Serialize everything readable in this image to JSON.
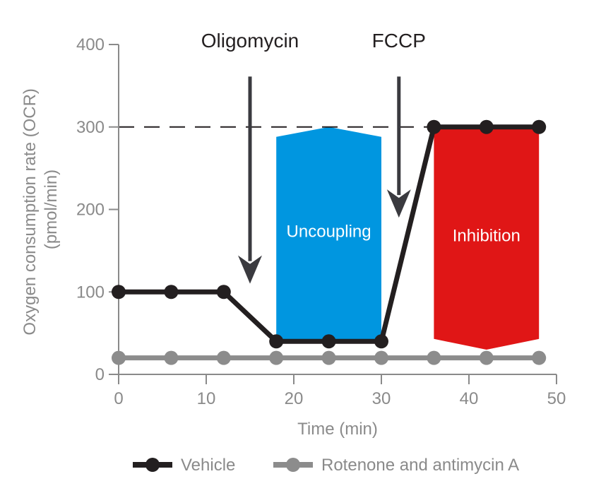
{
  "chart_data": {
    "type": "line",
    "xlabel": "Time (min)",
    "ylabel_lines": [
      "Oxygen consumption rate (OCR)",
      "(pmol/min)"
    ],
    "xlim": [
      0,
      50
    ],
    "ylim": [
      0,
      400
    ],
    "x_ticks": [
      0,
      10,
      20,
      30,
      40,
      50
    ],
    "y_ticks": [
      0,
      100,
      200,
      300,
      400
    ],
    "grid": false,
    "reference_line": {
      "y": 300,
      "style": "dashed",
      "color": "#231f20"
    },
    "series": [
      {
        "name": "Vehicle",
        "color": "#231f20",
        "x": [
          0,
          6,
          12,
          18,
          24,
          30,
          36,
          42,
          48
        ],
        "y": [
          100,
          100,
          100,
          40,
          40,
          40,
          300,
          300,
          300
        ]
      },
      {
        "name": "Rotenone and antimycin A",
        "color": "#8c8c8c",
        "x": [
          0,
          6,
          12,
          18,
          24,
          30,
          36,
          42,
          48
        ],
        "y": [
          20,
          20,
          20,
          20,
          20,
          20,
          20,
          20,
          20
        ]
      }
    ],
    "annotations": [
      {
        "text": "Oligomycin",
        "x": 15,
        "arrow_from": 380,
        "arrow_to": 110
      },
      {
        "text": "FCCP",
        "x": 32,
        "arrow_from": 380,
        "arrow_to": 190
      }
    ],
    "regions": [
      {
        "label": "Uncoupling",
        "x_start": 18,
        "x_end": 30,
        "y_bottom": 40,
        "y_top": 300,
        "y_top_edge": 288,
        "color": "#0096e0",
        "shape": "arrow-up"
      },
      {
        "label": "Inhibition",
        "x_start": 36,
        "x_end": 48,
        "y_bottom": 30,
        "y_bottom_edge": 43,
        "y_top": 300,
        "color": "#e01616",
        "shape": "arrow-down"
      }
    ],
    "legend": {
      "position": "bottom"
    }
  }
}
